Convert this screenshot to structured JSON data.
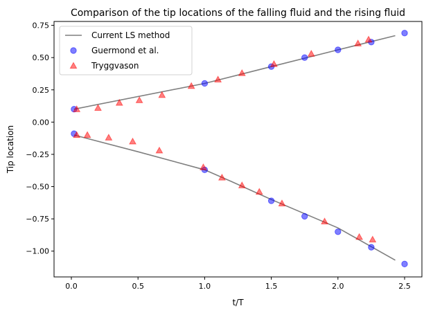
{
  "chart_data": {
    "type": "scatter",
    "title": "Comparison of the tip locations of the falling fluid and the rising fluid",
    "xlabel": "t/T",
    "ylabel": "Tip location",
    "xlim": [
      -0.13,
      2.63
    ],
    "ylim": [
      -1.2,
      0.78
    ],
    "xticks": [
      0.0,
      0.5,
      1.0,
      1.5,
      2.0,
      2.5
    ],
    "xtick_labels": [
      "0.0",
      "0.5",
      "1.0",
      "1.5",
      "2.0",
      "2.5"
    ],
    "yticks": [
      0.75,
      0.5,
      0.25,
      0.0,
      -0.25,
      -0.5,
      -0.75,
      -1.0
    ],
    "ytick_labels": [
      "0.75",
      "0.50",
      "0.25",
      "0.00",
      "−0.25",
      "−0.50",
      "−0.75",
      "−1.00"
    ],
    "grid": false,
    "legend_position": "top-left",
    "series": [
      {
        "name": "Current LS method",
        "kind": "line",
        "color": "#7f7f7f",
        "segments": [
          {
            "x": [
              0.02,
              1.0,
              1.5,
              2.0,
              2.43
            ],
            "y": [
              0.1,
              0.3,
              0.43,
              0.56,
              0.67
            ]
          },
          {
            "x": [
              0.02,
              0.5,
              1.0,
              1.2,
              1.5,
              2.0,
              2.43
            ],
            "y": [
              -0.1,
              -0.23,
              -0.37,
              -0.46,
              -0.6,
              -0.82,
              -1.07
            ]
          }
        ]
      },
      {
        "name": "Guermond et al.",
        "kind": "circle",
        "color": "#0000ff",
        "x": [
          0.02,
          1.0,
          1.5,
          1.75,
          2.0,
          2.25,
          2.5,
          0.02,
          1.0,
          1.5,
          1.75,
          2.0,
          2.25,
          2.5
        ],
        "y": [
          0.1,
          0.3,
          0.43,
          0.5,
          0.56,
          0.62,
          0.69,
          -0.09,
          -0.37,
          -0.61,
          -0.73,
          -0.85,
          -0.97,
          -1.1
        ]
      },
      {
        "name": "Tryggvason",
        "kind": "triangle",
        "color": "#ff0000",
        "x": [
          0.04,
          0.2,
          0.36,
          0.51,
          0.68,
          0.9,
          1.1,
          1.28,
          1.52,
          1.8,
          2.15,
          2.23,
          0.04,
          0.12,
          0.28,
          0.46,
          0.66,
          0.99,
          1.13,
          1.28,
          1.41,
          1.58,
          1.9,
          2.16,
          2.26
        ],
        "y": [
          0.1,
          0.11,
          0.15,
          0.17,
          0.21,
          0.28,
          0.33,
          0.38,
          0.45,
          0.53,
          0.61,
          0.64,
          -0.1,
          -0.1,
          -0.12,
          -0.15,
          -0.22,
          -0.35,
          -0.43,
          -0.49,
          -0.54,
          -0.63,
          -0.77,
          -0.89,
          -0.91
        ]
      }
    ]
  }
}
